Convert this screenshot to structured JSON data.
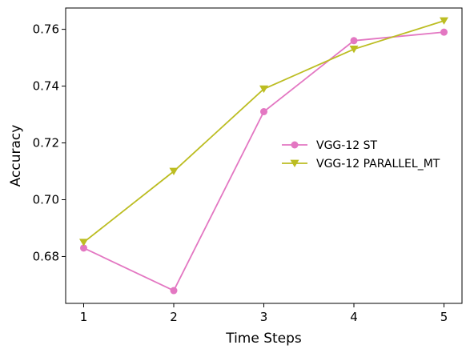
{
  "chart_data": {
    "type": "line",
    "xlabel": "Time Steps",
    "ylabel": "Accuracy",
    "x": [
      1,
      2,
      3,
      4,
      5
    ],
    "x_ticks": [
      "1",
      "2",
      "3",
      "4",
      "5"
    ],
    "y_ticks": [
      "0.68",
      "0.70",
      "0.72",
      "0.74",
      "0.76"
    ],
    "xlim": [
      0.8,
      5.2
    ],
    "ylim": [
      0.6635,
      0.7675
    ],
    "grid": false,
    "legend_position": "center-right",
    "series": [
      {
        "name": "VGG-12 ST",
        "values": [
          0.683,
          0.668,
          0.731,
          0.756,
          0.759
        ],
        "color": "#e377c2",
        "marker": "circle"
      },
      {
        "name": "VGG-12 PARALLEL_MT",
        "values": [
          0.685,
          0.71,
          0.739,
          0.753,
          0.763
        ],
        "color": "#bcbd22",
        "marker": "triangle-down"
      }
    ]
  }
}
